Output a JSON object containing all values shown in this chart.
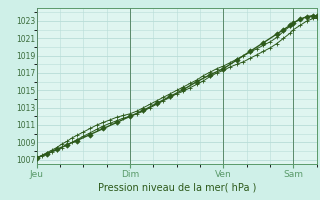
{
  "bg_color": "#cff0e8",
  "plot_bg_color": "#dff5f0",
  "grid_color": "#b8ddd8",
  "line_color": "#2d5a1b",
  "marker_color": "#2d5a1b",
  "axis_label_color": "#2d5a1b",
  "tick_label_color": "#3a6b3a",
  "spine_color": "#5a9a6a",
  "xlabel": "Pression niveau de la mer( hPa )",
  "ylim": [
    1006.5,
    1024.5
  ],
  "yticks": [
    1007,
    1009,
    1011,
    1013,
    1015,
    1017,
    1019,
    1021,
    1023
  ],
  "xlim": [
    0,
    168
  ],
  "day_positions": [
    0,
    56,
    112,
    154
  ],
  "day_labels": [
    "Jeu",
    "Dim",
    "Ven",
    "Sam"
  ],
  "vline_positions": [
    0,
    56,
    112,
    154
  ],
  "series1_x": [
    0,
    3,
    6,
    9,
    12,
    15,
    18,
    21,
    24,
    28,
    32,
    36,
    40,
    44,
    48,
    52,
    56,
    60,
    64,
    68,
    72,
    76,
    80,
    84,
    88,
    92,
    96,
    100,
    104,
    108,
    112,
    116,
    120,
    124,
    128,
    132,
    136,
    140,
    144,
    148,
    152,
    154,
    158,
    162,
    166,
    168
  ],
  "series1_y": [
    1007.2,
    1007.4,
    1007.6,
    1007.9,
    1008.1,
    1008.4,
    1008.7,
    1009.0,
    1009.3,
    1009.7,
    1010.1,
    1010.5,
    1010.9,
    1011.2,
    1011.5,
    1011.8,
    1012.0,
    1012.3,
    1012.6,
    1013.0,
    1013.4,
    1013.8,
    1014.2,
    1014.6,
    1014.9,
    1015.3,
    1015.7,
    1016.1,
    1016.6,
    1017.0,
    1017.3,
    1017.7,
    1018.0,
    1018.3,
    1018.7,
    1019.1,
    1019.5,
    1019.9,
    1020.4,
    1021.0,
    1021.6,
    1022.0,
    1022.5,
    1023.0,
    1023.3,
    1023.3
  ],
  "series2_x": [
    0,
    3,
    6,
    9,
    12,
    15,
    18,
    21,
    24,
    28,
    32,
    36,
    40,
    44,
    48,
    52,
    56,
    60,
    64,
    68,
    72,
    76,
    80,
    84,
    88,
    92,
    96,
    100,
    104,
    108,
    112,
    116,
    120,
    124,
    128,
    132,
    136,
    140,
    144,
    148,
    152,
    154,
    158,
    162,
    166,
    168
  ],
  "series2_y": [
    1007.2,
    1007.5,
    1007.8,
    1008.1,
    1008.4,
    1008.8,
    1009.1,
    1009.5,
    1009.8,
    1010.2,
    1010.6,
    1011.0,
    1011.3,
    1011.6,
    1011.9,
    1012.1,
    1012.3,
    1012.6,
    1013.0,
    1013.4,
    1013.8,
    1014.2,
    1014.6,
    1015.0,
    1015.4,
    1015.8,
    1016.2,
    1016.7,
    1017.1,
    1017.5,
    1017.8,
    1018.2,
    1018.6,
    1019.0,
    1019.4,
    1019.8,
    1020.2,
    1020.6,
    1021.1,
    1021.8,
    1022.4,
    1022.8,
    1023.2,
    1023.5,
    1023.6,
    1023.6
  ],
  "series3_x": [
    0,
    6,
    12,
    18,
    24,
    32,
    40,
    48,
    56,
    64,
    72,
    80,
    88,
    96,
    104,
    112,
    120,
    128,
    136,
    144,
    148,
    152,
    154,
    158,
    162,
    166,
    168
  ],
  "series3_y": [
    1007.2,
    1007.7,
    1008.2,
    1008.7,
    1009.2,
    1009.9,
    1010.6,
    1011.3,
    1012.0,
    1012.7,
    1013.5,
    1014.3,
    1015.1,
    1016.0,
    1016.8,
    1017.5,
    1018.5,
    1019.5,
    1020.5,
    1021.5,
    1022.0,
    1022.5,
    1022.8,
    1023.2,
    1023.5,
    1023.6,
    1023.6
  ]
}
